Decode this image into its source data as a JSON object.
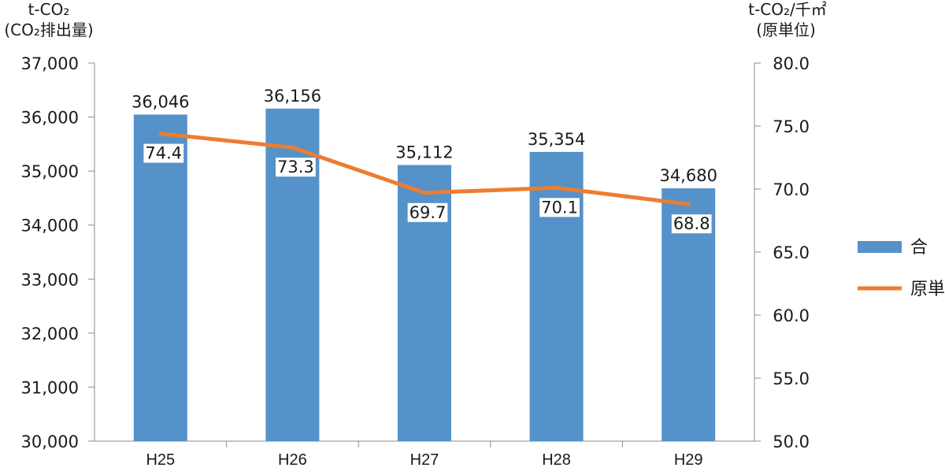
{
  "chart_data": {
    "type": "bar",
    "categories": [
      "H25",
      "H26",
      "H27",
      "H28",
      "H29"
    ],
    "series": [
      {
        "name": "合　計",
        "type": "bar",
        "axis": "left",
        "values": [
          36046,
          36156,
          35112,
          35354,
          34680
        ],
        "labels": [
          "36,046",
          "36,156",
          "35,112",
          "35,354",
          "34,680"
        ],
        "color": "#5592c9"
      },
      {
        "name": "原単位",
        "type": "line",
        "axis": "right",
        "values": [
          74.4,
          73.3,
          69.7,
          70.1,
          68.8
        ],
        "labels": [
          "74.4",
          "73.3",
          "69.7",
          "70.1",
          "68.8"
        ],
        "color": "#ec7d31"
      }
    ],
    "y_left": {
      "label_line1": "t-CO₂",
      "label_line2": "(CO₂排出量)",
      "ylim": [
        30000,
        37000
      ],
      "ticks": [
        "30,000",
        "31,000",
        "32,000",
        "33,000",
        "34,000",
        "35,000",
        "36,000",
        "37,000"
      ]
    },
    "y_right": {
      "label_line1": "t-CO₂/千㎡",
      "label_line2": "(原単位)",
      "ylim": [
        50.0,
        80.0
      ],
      "ticks": [
        "50.0",
        "55.0",
        "60.0",
        "65.0",
        "70.0",
        "75.0",
        "80.0"
      ]
    },
    "grid": false,
    "legend_position": "right"
  }
}
